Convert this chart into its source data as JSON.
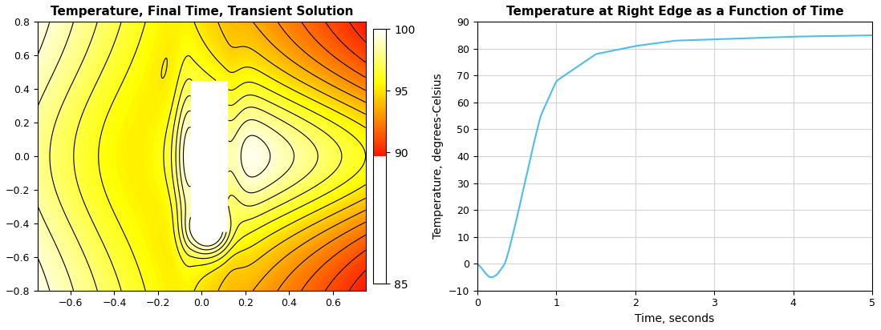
{
  "title1": "Temperature, Final Time, Transient Solution",
  "title2": "Temperature at Right Edge as a Function of Time",
  "xlabel2": "Time, seconds",
  "ylabel2": "Temperature, degrees-Celsius",
  "xlim1": [
    -0.75,
    0.75
  ],
  "ylim1": [
    -0.8,
    0.8
  ],
  "xlim2": [
    0,
    5
  ],
  "ylim2": [
    -10,
    90
  ],
  "cbar_ticks": [
    85,
    90,
    95,
    100
  ],
  "vmin": 83.0,
  "vmax": 100.0,
  "line_color": "#4DBEEE",
  "bg_color": "#FFFFFF",
  "grid_color": "#D3D3D3",
  "contour_levels": 12,
  "hole_xmin": -0.05,
  "hole_xmax": 0.12,
  "hole_ymin": -0.45,
  "hole_ymax": 0.45,
  "xticks1": [
    -0.6,
    -0.4,
    -0.2,
    0.0,
    0.2,
    0.4,
    0.6
  ],
  "yticks1": [
    -0.8,
    -0.6,
    -0.4,
    -0.2,
    0.0,
    0.2,
    0.4,
    0.6,
    0.8
  ],
  "xticks2": [
    0,
    1,
    2,
    3,
    4,
    5
  ],
  "yticks2": [
    -10,
    0,
    10,
    20,
    30,
    40,
    50,
    60,
    70,
    80,
    90
  ]
}
